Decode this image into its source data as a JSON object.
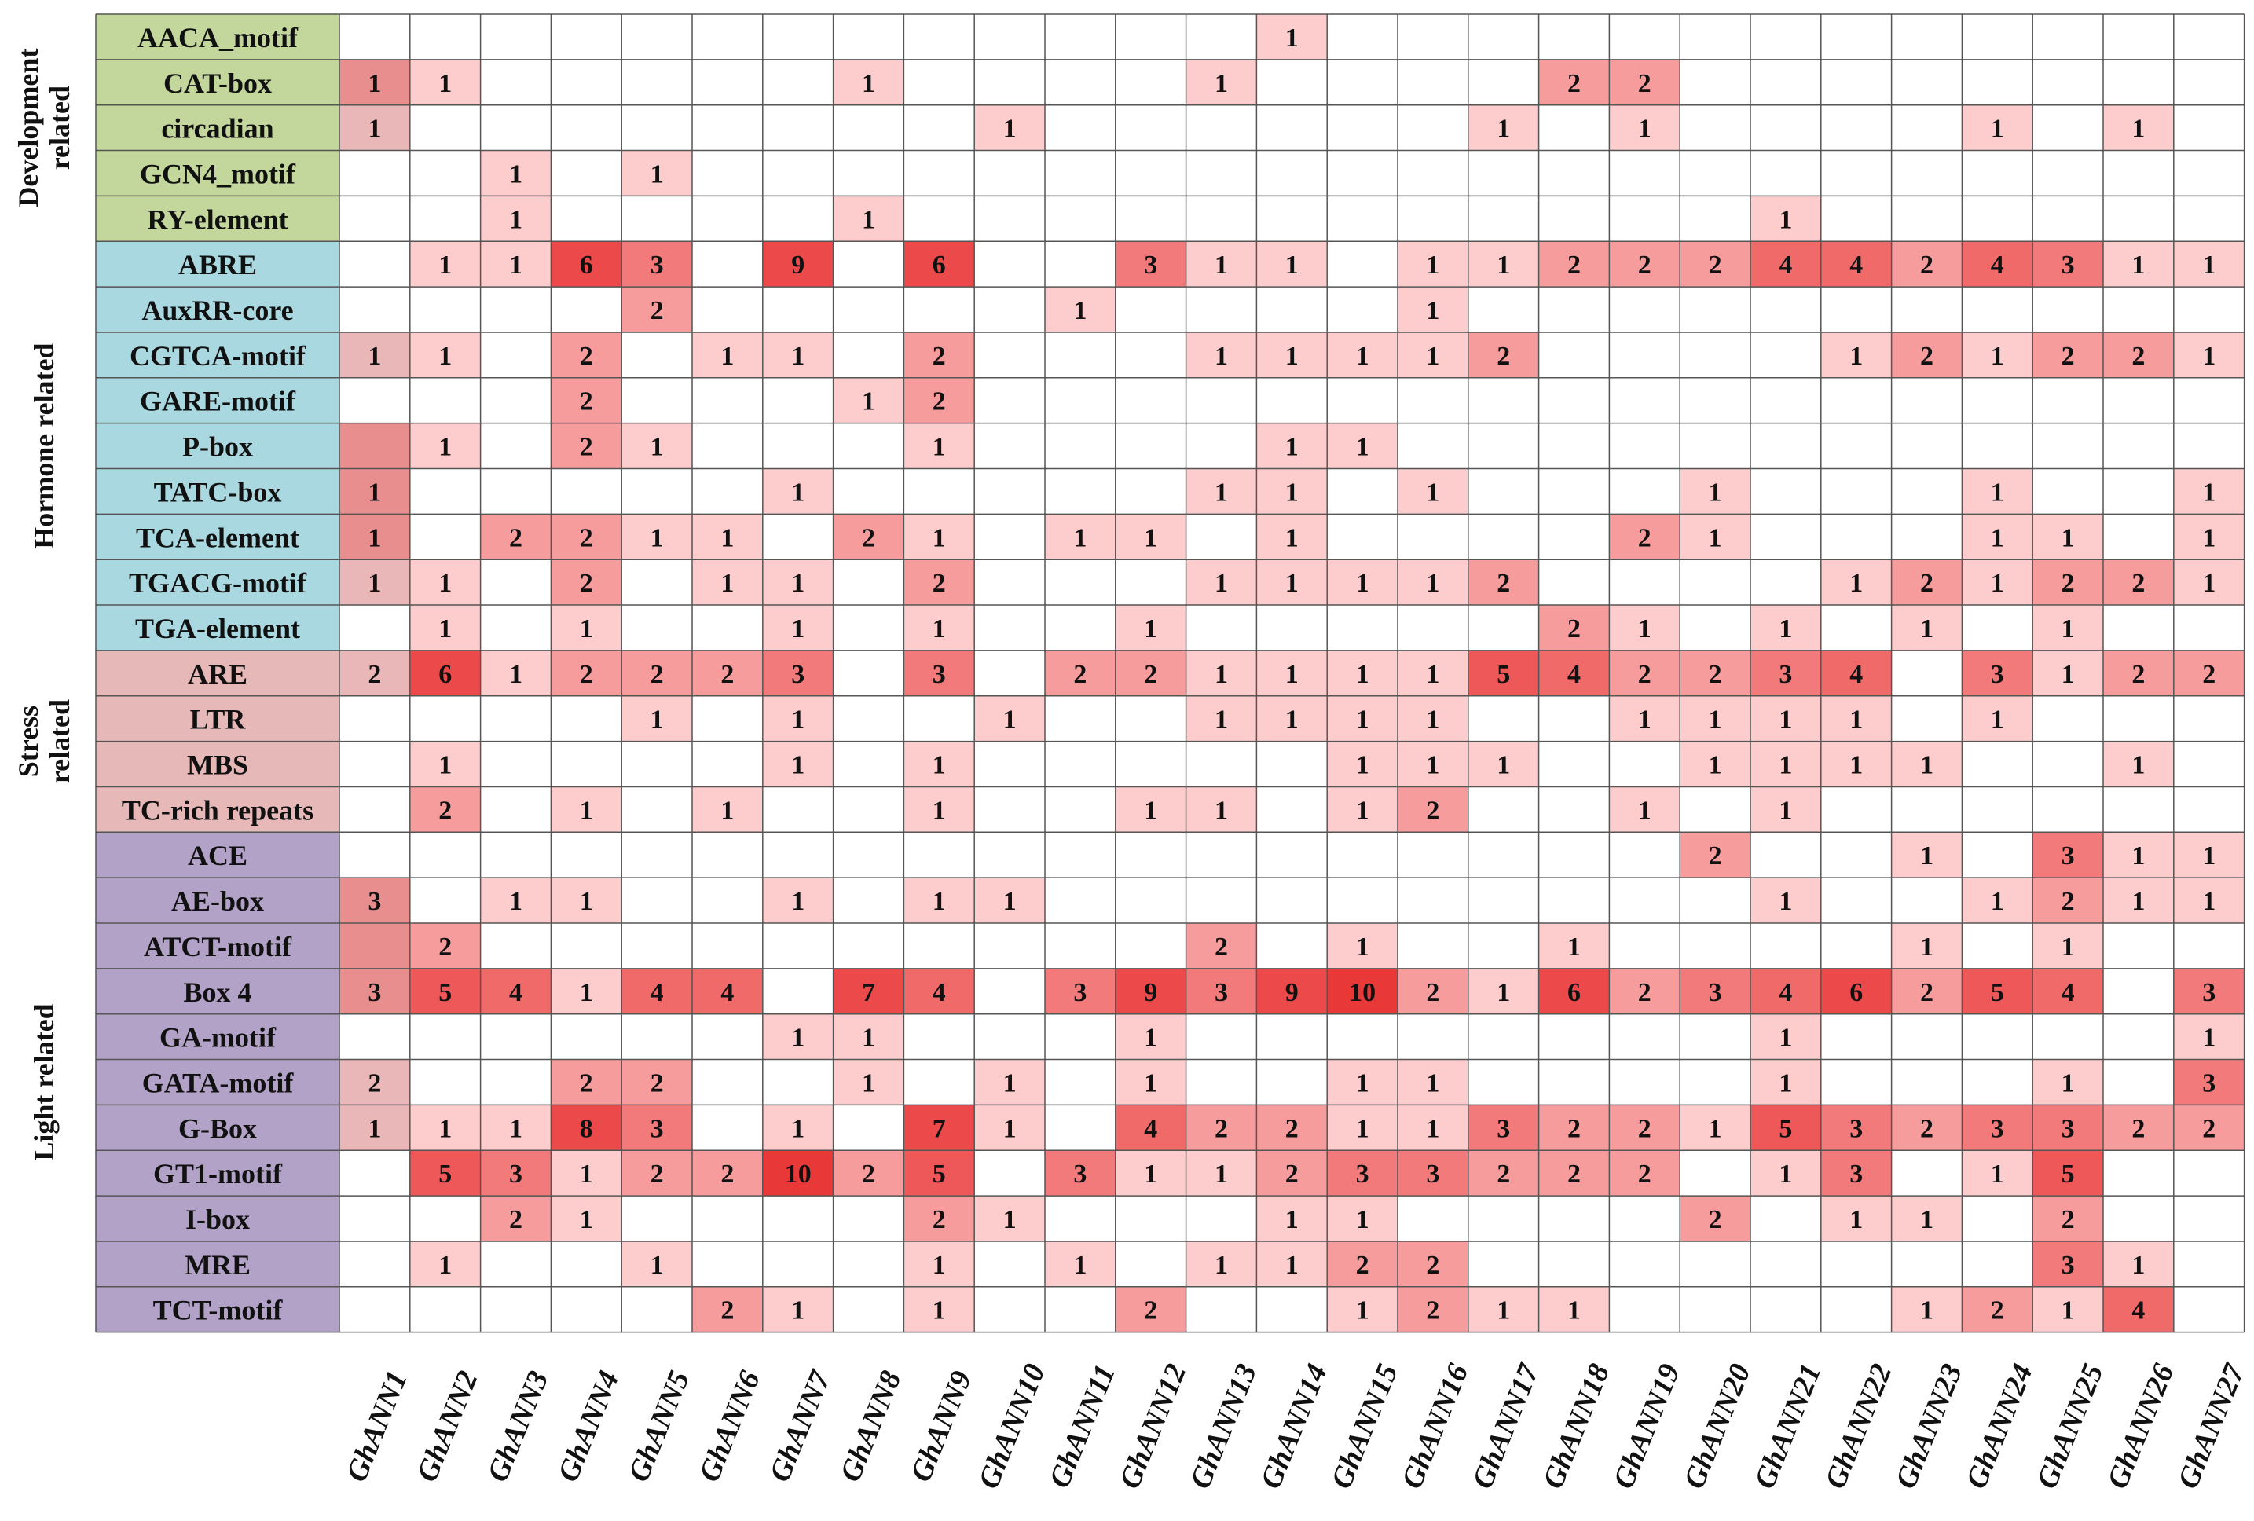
{
  "chart_data": {
    "type": "heatmap",
    "columns": [
      "GhANN1",
      "GhANN2",
      "GhANN3",
      "GhANN4",
      "GhANN5",
      "GhANN6",
      "GhANN7",
      "GhANN8",
      "GhANN9",
      "GhANN10",
      "GhANN11",
      "GhANN12",
      "GhANN13",
      "GhANN14",
      "GhANN15",
      "GhANN16",
      "GhANN17",
      "GhANN18",
      "GhANN19",
      "GhANN20",
      "GhANN21",
      "GhANN22",
      "GhANN23",
      "GhANN24",
      "GhANN25",
      "GhANN26",
      "GhANN27"
    ],
    "groups": [
      {
        "name_lines": [
          "Development",
          "related"
        ],
        "color": "#c3d69b",
        "rows": [
          {
            "motif": "AACA_motif",
            "values": [
              0,
              0,
              0,
              0,
              0,
              0,
              0,
              0,
              0,
              0,
              0,
              0,
              0,
              1,
              0,
              0,
              0,
              0,
              0,
              0,
              0,
              0,
              0,
              0,
              0,
              0,
              0
            ]
          },
          {
            "motif": "CAT-box",
            "values": [
              1,
              1,
              0,
              0,
              0,
              0,
              0,
              1,
              0,
              0,
              0,
              0,
              1,
              0,
              0,
              0,
              0,
              2,
              2,
              0,
              0,
              0,
              0,
              0,
              0,
              0,
              0
            ]
          },
          {
            "motif": "circadian",
            "values": [
              1,
              0,
              0,
              0,
              0,
              0,
              0,
              0,
              0,
              1,
              0,
              0,
              0,
              0,
              0,
              0,
              1,
              0,
              1,
              0,
              0,
              0,
              0,
              1,
              0,
              1,
              0
            ]
          },
          {
            "motif": "GCN4_motif",
            "values": [
              0,
              0,
              1,
              0,
              1,
              0,
              0,
              0,
              0,
              0,
              0,
              0,
              0,
              0,
              0,
              0,
              0,
              0,
              0,
              0,
              0,
              0,
              0,
              0,
              0,
              0,
              0
            ]
          },
          {
            "motif": "RY-element",
            "values": [
              0,
              0,
              1,
              0,
              0,
              0,
              0,
              1,
              0,
              0,
              0,
              0,
              0,
              0,
              0,
              0,
              0,
              0,
              0,
              0,
              1,
              0,
              0,
              0,
              0,
              0,
              0
            ]
          }
        ]
      },
      {
        "name_lines": [
          "Hormone related"
        ],
        "color": "#a9d8e0",
        "rows": [
          {
            "motif": "ABRE",
            "values": [
              0,
              1,
              1,
              6,
              3,
              0,
              9,
              0,
              6,
              0,
              0,
              3,
              1,
              1,
              0,
              1,
              1,
              2,
              2,
              2,
              4,
              4,
              2,
              4,
              3,
              1,
              1
            ]
          },
          {
            "motif": "AuxRR-core",
            "values": [
              0,
              0,
              0,
              0,
              2,
              0,
              0,
              0,
              0,
              0,
              1,
              0,
              0,
              0,
              0,
              1,
              0,
              0,
              0,
              0,
              0,
              0,
              0,
              0,
              0,
              0,
              0
            ]
          },
          {
            "motif": "CGTCA-motif",
            "values": [
              1,
              1,
              0,
              2,
              0,
              1,
              1,
              0,
              2,
              0,
              0,
              0,
              1,
              1,
              1,
              1,
              2,
              0,
              0,
              0,
              0,
              1,
              2,
              1,
              2,
              2,
              1
            ]
          },
          {
            "motif": "GARE-motif",
            "values": [
              0,
              0,
              0,
              2,
              0,
              0,
              0,
              1,
              2,
              0,
              0,
              0,
              0,
              0,
              0,
              0,
              0,
              0,
              0,
              0,
              0,
              0,
              0,
              0,
              0,
              0,
              0
            ]
          },
          {
            "motif": "P-box",
            "values": [
              0,
              1,
              0,
              2,
              1,
              0,
              0,
              0,
              1,
              0,
              0,
              0,
              0,
              1,
              1,
              0,
              0,
              0,
              0,
              0,
              0,
              0,
              0,
              0,
              0,
              0,
              0
            ]
          },
          {
            "motif": "TATC-box",
            "values": [
              1,
              0,
              0,
              0,
              0,
              0,
              1,
              0,
              0,
              0,
              0,
              0,
              1,
              1,
              0,
              1,
              0,
              0,
              0,
              1,
              0,
              0,
              0,
              1,
              0,
              0,
              1
            ]
          },
          {
            "motif": "TCA-element",
            "values": [
              1,
              0,
              2,
              2,
              1,
              1,
              0,
              2,
              1,
              0,
              1,
              1,
              0,
              1,
              0,
              0,
              0,
              0,
              2,
              1,
              0,
              0,
              0,
              1,
              1,
              0,
              1
            ]
          },
          {
            "motif": "TGACG-motif",
            "values": [
              1,
              1,
              0,
              2,
              0,
              1,
              1,
              0,
              2,
              0,
              0,
              0,
              1,
              1,
              1,
              1,
              2,
              0,
              0,
              0,
              0,
              1,
              2,
              1,
              2,
              2,
              1
            ]
          },
          {
            "motif": "TGA-element",
            "values": [
              0,
              1,
              0,
              1,
              0,
              0,
              1,
              0,
              1,
              0,
              0,
              1,
              0,
              0,
              0,
              0,
              0,
              2,
              1,
              0,
              1,
              0,
              1,
              0,
              1,
              0,
              0
            ]
          }
        ]
      },
      {
        "name_lines": [
          "Stress",
          "related"
        ],
        "color": "#e6b8b7",
        "rows": [
          {
            "motif": "ARE",
            "values": [
              2,
              6,
              1,
              2,
              2,
              2,
              3,
              0,
              3,
              0,
              2,
              2,
              1,
              1,
              1,
              1,
              5,
              4,
              2,
              2,
              3,
              4,
              0,
              3,
              1,
              2,
              2
            ]
          },
          {
            "motif": "LTR",
            "values": [
              0,
              0,
              0,
              0,
              1,
              0,
              1,
              0,
              0,
              1,
              0,
              0,
              1,
              1,
              1,
              1,
              0,
              0,
              1,
              1,
              1,
              1,
              0,
              1,
              0,
              0,
              0
            ]
          },
          {
            "motif": "MBS",
            "values": [
              0,
              1,
              0,
              0,
              0,
              0,
              1,
              0,
              1,
              0,
              0,
              0,
              0,
              0,
              1,
              1,
              1,
              0,
              0,
              1,
              1,
              1,
              1,
              0,
              0,
              1,
              0
            ]
          },
          {
            "motif": "TC-rich repeats",
            "values": [
              0,
              2,
              0,
              1,
              0,
              1,
              0,
              0,
              1,
              0,
              0,
              1,
              1,
              0,
              1,
              2,
              0,
              0,
              1,
              0,
              1,
              0,
              0,
              0,
              0,
              0,
              0
            ]
          }
        ]
      },
      {
        "name_lines": [
          "Light related"
        ],
        "color": "#b3a2c7",
        "rows": [
          {
            "motif": "ACE",
            "values": [
              0,
              0,
              0,
              0,
              0,
              0,
              0,
              0,
              0,
              0,
              0,
              0,
              0,
              0,
              0,
              0,
              0,
              0,
              0,
              2,
              0,
              0,
              1,
              0,
              3,
              1,
              1
            ]
          },
          {
            "motif": "AE-box",
            "values": [
              3,
              0,
              1,
              1,
              0,
              0,
              1,
              0,
              1,
              1,
              0,
              0,
              0,
              0,
              0,
              0,
              0,
              0,
              0,
              0,
              1,
              0,
              0,
              1,
              2,
              1,
              1
            ]
          },
          {
            "motif": "ATCT-motif",
            "values": [
              0,
              2,
              0,
              0,
              0,
              0,
              0,
              0,
              0,
              0,
              0,
              0,
              2,
              0,
              1,
              0,
              0,
              1,
              0,
              0,
              0,
              0,
              1,
              0,
              1,
              0,
              0
            ]
          },
          {
            "motif": "Box 4",
            "values": [
              3,
              5,
              4,
              1,
              4,
              4,
              0,
              7,
              4,
              0,
              3,
              9,
              3,
              9,
              10,
              2,
              1,
              6,
              2,
              3,
              4,
              6,
              2,
              5,
              4,
              0,
              3
            ]
          },
          {
            "motif": "GA-motif",
            "values": [
              0,
              0,
              0,
              0,
              0,
              0,
              1,
              1,
              0,
              0,
              0,
              1,
              0,
              0,
              0,
              0,
              0,
              0,
              0,
              0,
              1,
              0,
              0,
              0,
              0,
              0,
              1
            ]
          },
          {
            "motif": "GATA-motif",
            "values": [
              2,
              0,
              0,
              2,
              2,
              0,
              0,
              1,
              0,
              1,
              0,
              1,
              0,
              0,
              1,
              1,
              0,
              0,
              0,
              0,
              1,
              0,
              0,
              0,
              1,
              0,
              3
            ]
          },
          {
            "motif": "G-Box",
            "values": [
              1,
              1,
              1,
              8,
              3,
              0,
              1,
              0,
              7,
              1,
              0,
              4,
              2,
              2,
              1,
              1,
              3,
              2,
              2,
              1,
              5,
              3,
              2,
              3,
              3,
              2,
              2
            ]
          },
          {
            "motif": "GT1-motif",
            "values": [
              0,
              5,
              3,
              1,
              2,
              2,
              10,
              2,
              5,
              0,
              3,
              1,
              1,
              2,
              3,
              3,
              2,
              2,
              2,
              0,
              1,
              3,
              0,
              1,
              5,
              0,
              0
            ]
          },
          {
            "motif": "I-box",
            "values": [
              0,
              0,
              2,
              1,
              0,
              0,
              0,
              0,
              2,
              1,
              0,
              0,
              0,
              1,
              1,
              0,
              0,
              0,
              0,
              2,
              0,
              1,
              1,
              0,
              2,
              0,
              0
            ]
          },
          {
            "motif": "MRE",
            "values": [
              0,
              1,
              0,
              0,
              1,
              0,
              0,
              0,
              1,
              0,
              1,
              0,
              1,
              1,
              2,
              2,
              0,
              0,
              0,
              0,
              0,
              0,
              0,
              0,
              3,
              1,
              0
            ]
          },
          {
            "motif": "TCT-motif",
            "values": [
              0,
              0,
              0,
              0,
              0,
              2,
              1,
              0,
              1,
              0,
              0,
              2,
              0,
              0,
              1,
              2,
              1,
              1,
              0,
              0,
              0,
              0,
              1,
              2,
              1,
              4,
              0
            ]
          }
        ]
      }
    ],
    "first_column_shading": [
      "#ffffff",
      "#e88e8e",
      "#e9b7b7",
      "#ffffff",
      "#ffffff",
      "#ffffff",
      "#ffffff",
      "#e9b7b7",
      "#ffffff",
      "#e88e8e",
      "#e88e8e",
      "#e88e8e",
      "#e9b7b7",
      "#ffffff",
      "#e9b7b7",
      "#ffffff",
      "#ffffff",
      "#ffffff",
      "#ffffff",
      "#e88e8e",
      "#e88e8e",
      "#e88e8e",
      "#ffffff",
      "#e9b7b7",
      "#e9b7b7",
      "#ffffff",
      "#ffffff",
      "#ffffff",
      "#ffffff"
    ],
    "color_scale": {
      "zero": "#ffffff",
      "stops": [
        {
          "value": 1,
          "color": "#fdcccc"
        },
        {
          "value": 2,
          "color": "#f79c9c"
        },
        {
          "value": 3,
          "color": "#f27a7a"
        },
        {
          "value": 4,
          "color": "#f06a6a"
        },
        {
          "value": 5,
          "color": "#ee5858"
        },
        {
          "value": 6,
          "color": "#ec4a4a"
        },
        {
          "value": 10,
          "color": "#e83838"
        }
      ]
    },
    "grid_color": "#555555"
  }
}
